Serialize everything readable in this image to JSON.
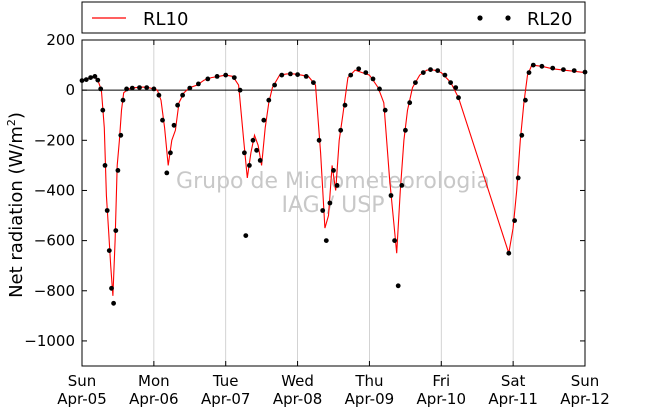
{
  "chart_data": {
    "type": "line",
    "ylabel": "Net radiation (W/m",
    "ylabel_sup": "2",
    "ylabel_end": ")",
    "xlabel": "",
    "ylim": [
      -1100,
      200
    ],
    "yticks": [
      200,
      0,
      -200,
      -400,
      -600,
      -800,
      -1000
    ],
    "ytick_labels": [
      "200",
      "0",
      "−200",
      "−400",
      "−600",
      "−800",
      "−1000"
    ],
    "xlim": [
      0,
      7
    ],
    "xticks": [
      {
        "x": 0,
        "day": "Sun",
        "date": "Apr-05"
      },
      {
        "x": 1,
        "day": "Mon",
        "date": "Apr-06"
      },
      {
        "x": 2,
        "day": "Tue",
        "date": "Apr-07"
      },
      {
        "x": 3,
        "day": "Wed",
        "date": "Apr-08"
      },
      {
        "x": 4,
        "day": "Thu",
        "date": "Apr-09"
      },
      {
        "x": 5,
        "day": "Fri",
        "date": "Apr-10"
      },
      {
        "x": 6,
        "day": "Sat",
        "date": "Apr-11"
      },
      {
        "x": 7,
        "day": "Sun",
        "date": "Apr-12"
      }
    ],
    "grid": "vertical",
    "zero_line": true,
    "legend_position": "top",
    "watermark": [
      "Grupo de Micrometeorologia",
      "IAG / USP"
    ],
    "series": [
      {
        "name": "RL10",
        "style": "line",
        "color": "#ff0000",
        "points": [
          [
            0.0,
            40
          ],
          [
            0.08,
            45
          ],
          [
            0.16,
            55
          ],
          [
            0.22,
            40
          ],
          [
            0.27,
            0
          ],
          [
            0.31,
            -150
          ],
          [
            0.34,
            -420
          ],
          [
            0.37,
            -560
          ],
          [
            0.4,
            -700
          ],
          [
            0.43,
            -820
          ],
          [
            0.46,
            -600
          ],
          [
            0.49,
            -300
          ],
          [
            0.52,
            -200
          ],
          [
            0.55,
            -80
          ],
          [
            0.58,
            -10
          ],
          [
            0.65,
            5
          ],
          [
            0.75,
            10
          ],
          [
            0.85,
            12
          ],
          [
            0.92,
            10
          ],
          [
            1.0,
            5
          ],
          [
            1.05,
            0
          ],
          [
            1.1,
            -40
          ],
          [
            1.15,
            -150
          ],
          [
            1.2,
            -300
          ],
          [
            1.25,
            -200
          ],
          [
            1.3,
            -160
          ],
          [
            1.35,
            -50
          ],
          [
            1.42,
            -10
          ],
          [
            1.5,
            10
          ],
          [
            1.6,
            20
          ],
          [
            1.7,
            40
          ],
          [
            1.8,
            50
          ],
          [
            1.9,
            55
          ],
          [
            2.0,
            60
          ],
          [
            2.1,
            55
          ],
          [
            2.18,
            20
          ],
          [
            2.25,
            -200
          ],
          [
            2.3,
            -350
          ],
          [
            2.35,
            -250
          ],
          [
            2.4,
            -180
          ],
          [
            2.45,
            -220
          ],
          [
            2.5,
            -300
          ],
          [
            2.55,
            -150
          ],
          [
            2.6,
            -50
          ],
          [
            2.65,
            10
          ],
          [
            2.75,
            60
          ],
          [
            2.85,
            65
          ],
          [
            2.95,
            65
          ],
          [
            3.05,
            60
          ],
          [
            3.15,
            55
          ],
          [
            3.25,
            20
          ],
          [
            3.32,
            -250
          ],
          [
            3.38,
            -550
          ],
          [
            3.43,
            -500
          ],
          [
            3.48,
            -300
          ],
          [
            3.53,
            -400
          ],
          [
            3.58,
            -200
          ],
          [
            3.63,
            -100
          ],
          [
            3.7,
            50
          ],
          [
            3.8,
            80
          ],
          [
            3.9,
            70
          ],
          [
            4.0,
            60
          ],
          [
            4.05,
            40
          ],
          [
            4.12,
            10
          ],
          [
            4.2,
            -50
          ],
          [
            4.28,
            -350
          ],
          [
            4.33,
            -500
          ],
          [
            4.38,
            -650
          ],
          [
            4.43,
            -400
          ],
          [
            4.48,
            -200
          ],
          [
            4.53,
            -80
          ],
          [
            4.6,
            10
          ],
          [
            4.7,
            60
          ],
          [
            4.8,
            80
          ],
          [
            4.9,
            80
          ],
          [
            5.0,
            70
          ],
          [
            5.1,
            40
          ],
          [
            5.15,
            20
          ],
          [
            5.24,
            -30
          ],
          [
            5.94,
            -650
          ],
          [
            6.0,
            -550
          ],
          [
            6.05,
            -400
          ],
          [
            6.1,
            -200
          ],
          [
            6.15,
            -50
          ],
          [
            6.2,
            60
          ],
          [
            6.26,
            100
          ],
          [
            6.4,
            95
          ],
          [
            6.55,
            85
          ],
          [
            6.7,
            80
          ],
          [
            6.85,
            75
          ],
          [
            7.0,
            70
          ]
        ]
      },
      {
        "name": "RL20",
        "style": "markers",
        "color": "#000000",
        "points": [
          [
            0.0,
            38
          ],
          [
            0.06,
            42
          ],
          [
            0.12,
            50
          ],
          [
            0.18,
            55
          ],
          [
            0.22,
            40
          ],
          [
            0.26,
            5
          ],
          [
            0.29,
            -80
          ],
          [
            0.32,
            -300
          ],
          [
            0.35,
            -480
          ],
          [
            0.38,
            -640
          ],
          [
            0.41,
            -790
          ],
          [
            0.44,
            -850
          ],
          [
            0.47,
            -560
          ],
          [
            0.5,
            -320
          ],
          [
            0.54,
            -180
          ],
          [
            0.57,
            -40
          ],
          [
            0.62,
            5
          ],
          [
            0.7,
            8
          ],
          [
            0.8,
            10
          ],
          [
            0.9,
            10
          ],
          [
            1.0,
            5
          ],
          [
            1.07,
            -20
          ],
          [
            1.12,
            -120
          ],
          [
            1.18,
            -330
          ],
          [
            1.23,
            -250
          ],
          [
            1.28,
            -140
          ],
          [
            1.33,
            -60
          ],
          [
            1.4,
            -20
          ],
          [
            1.5,
            8
          ],
          [
            1.62,
            25
          ],
          [
            1.75,
            45
          ],
          [
            1.88,
            55
          ],
          [
            2.0,
            60
          ],
          [
            2.12,
            50
          ],
          [
            2.2,
            0
          ],
          [
            2.26,
            -250
          ],
          [
            2.28,
            -580
          ],
          [
            2.33,
            -300
          ],
          [
            2.38,
            -200
          ],
          [
            2.43,
            -240
          ],
          [
            2.48,
            -280
          ],
          [
            2.53,
            -120
          ],
          [
            2.6,
            -40
          ],
          [
            2.68,
            20
          ],
          [
            2.78,
            60
          ],
          [
            2.9,
            65
          ],
          [
            3.0,
            62
          ],
          [
            3.12,
            55
          ],
          [
            3.22,
            30
          ],
          [
            3.3,
            -200
          ],
          [
            3.35,
            -480
          ],
          [
            3.4,
            -600
          ],
          [
            3.45,
            -450
          ],
          [
            3.5,
            -320
          ],
          [
            3.55,
            -380
          ],
          [
            3.6,
            -160
          ],
          [
            3.66,
            -60
          ],
          [
            3.74,
            60
          ],
          [
            3.85,
            85
          ],
          [
            3.95,
            70
          ],
          [
            4.05,
            45
          ],
          [
            4.14,
            5
          ],
          [
            4.22,
            -80
          ],
          [
            4.3,
            -420
          ],
          [
            4.35,
            -600
          ],
          [
            4.4,
            -780
          ],
          [
            4.45,
            -380
          ],
          [
            4.5,
            -160
          ],
          [
            4.56,
            -50
          ],
          [
            4.64,
            30
          ],
          [
            4.75,
            70
          ],
          [
            4.85,
            82
          ],
          [
            4.95,
            78
          ],
          [
            5.05,
            60
          ],
          [
            5.13,
            30
          ],
          [
            5.2,
            10
          ],
          [
            5.24,
            -30
          ],
          [
            5.94,
            -650
          ],
          [
            6.02,
            -520
          ],
          [
            6.07,
            -350
          ],
          [
            6.12,
            -180
          ],
          [
            6.17,
            -40
          ],
          [
            6.22,
            70
          ],
          [
            6.28,
            100
          ],
          [
            6.4,
            95
          ],
          [
            6.55,
            88
          ],
          [
            6.7,
            82
          ],
          [
            6.85,
            78
          ],
          [
            7.0,
            72
          ]
        ]
      }
    ]
  }
}
